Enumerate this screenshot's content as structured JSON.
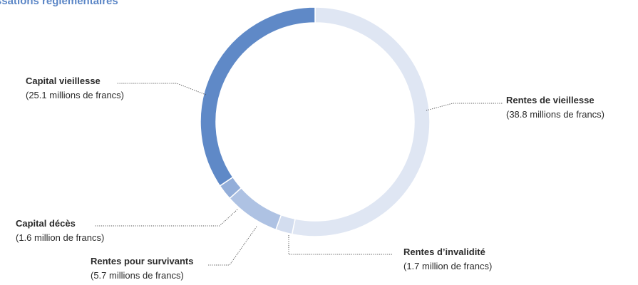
{
  "title": "ssations réglementaires",
  "chart_data": {
    "type": "pie",
    "donut": true,
    "unit": "millions de francs",
    "slices": [
      {
        "label": "Rentes de vieillesse",
        "value": 38.8,
        "amount_text": "(38.8 millions de francs)",
        "color": "#dfe6f3"
      },
      {
        "label": "Rentes d’invalidité",
        "value": 1.7,
        "amount_text": "(1.7 million de francs)",
        "color": "#d3ddef"
      },
      {
        "label": "Rentes pour survivants",
        "value": 5.7,
        "amount_text": "(5.7 millions de francs)",
        "color": "#aec2e3"
      },
      {
        "label": "Capital décès",
        "value": 1.6,
        "amount_text": "(1.6 million de francs)",
        "color": "#93aed9"
      },
      {
        "label": "Capital vieillesse",
        "value": 25.1,
        "amount_text": "(25.1 millions de francs)",
        "color": "#5f89c7"
      }
    ]
  }
}
